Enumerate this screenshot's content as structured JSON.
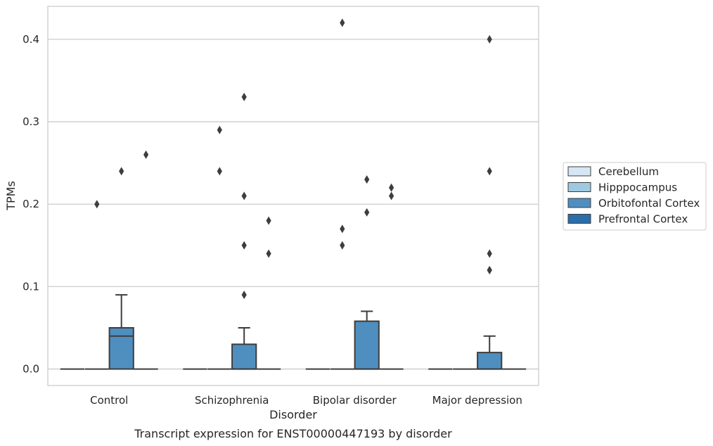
{
  "caption": "Transcript expression for ENST00000447193 by disorder",
  "chart_data": {
    "type": "box",
    "xlabel": "Disorder",
    "ylabel": "TPMs",
    "ylim": [
      -0.02,
      0.44
    ],
    "yticks": [
      "0.0",
      "0.1",
      "0.2",
      "0.3",
      "0.4"
    ],
    "ytick_values": [
      0.0,
      0.1,
      0.2,
      0.3,
      0.4
    ],
    "grid": "horizontal",
    "legend_position": "right",
    "categories": [
      "Control",
      "Schizophrenia",
      "Bipolar disorder",
      "Major depression"
    ],
    "series": [
      {
        "name": "Cerebellum",
        "color": "#d6e6f4",
        "boxes": [
          {
            "q1": 0,
            "median": 0,
            "q3": 0,
            "whisker_low": 0,
            "whisker_high": 0,
            "outliers": []
          },
          {
            "q1": 0,
            "median": 0,
            "q3": 0,
            "whisker_low": 0,
            "whisker_high": 0,
            "outliers": []
          },
          {
            "q1": 0,
            "median": 0,
            "q3": 0,
            "whisker_low": 0,
            "whisker_high": 0,
            "outliers": []
          },
          {
            "q1": 0,
            "median": 0,
            "q3": 0,
            "whisker_low": 0,
            "whisker_high": 0,
            "outliers": []
          }
        ]
      },
      {
        "name": "Hipppocampus",
        "color": "#9ecae1",
        "boxes": [
          {
            "q1": 0,
            "median": 0,
            "q3": 0,
            "whisker_low": 0,
            "whisker_high": 0,
            "outliers": [
              0.2
            ]
          },
          {
            "q1": 0,
            "median": 0,
            "q3": 0,
            "whisker_low": 0,
            "whisker_high": 0,
            "outliers": [
              0.24,
              0.29
            ]
          },
          {
            "q1": 0,
            "median": 0,
            "q3": 0,
            "whisker_low": 0,
            "whisker_high": 0,
            "outliers": [
              0.15,
              0.17,
              0.42
            ]
          },
          {
            "q1": 0,
            "median": 0,
            "q3": 0,
            "whisker_low": 0,
            "whisker_high": 0,
            "outliers": []
          }
        ]
      },
      {
        "name": "Orbitofontal Cortex",
        "color": "#4f8fc0",
        "boxes": [
          {
            "q1": 0,
            "median": 0.04,
            "q3": 0.05,
            "whisker_low": 0,
            "whisker_high": 0.09,
            "outliers": [
              0.24
            ]
          },
          {
            "q1": 0,
            "median": 0,
            "q3": 0.03,
            "whisker_low": 0,
            "whisker_high": 0.05,
            "outliers": [
              0.09,
              0.15,
              0.21,
              0.33
            ]
          },
          {
            "q1": 0,
            "median": 0,
            "q3": 0.058,
            "whisker_low": 0,
            "whisker_high": 0.07,
            "outliers": [
              0.19,
              0.23
            ]
          },
          {
            "q1": 0,
            "median": 0,
            "q3": 0.02,
            "whisker_low": 0,
            "whisker_high": 0.04,
            "outliers": [
              0.12,
              0.12,
              0.14,
              0.24,
              0.4
            ]
          }
        ]
      },
      {
        "name": "Prefrontal Cortex",
        "color": "#2b6ea9",
        "boxes": [
          {
            "q1": 0,
            "median": 0,
            "q3": 0,
            "whisker_low": 0,
            "whisker_high": 0,
            "outliers": [
              0.26
            ]
          },
          {
            "q1": 0,
            "median": 0,
            "q3": 0,
            "whisker_low": 0,
            "whisker_high": 0,
            "outliers": [
              0.14,
              0.18
            ]
          },
          {
            "q1": 0,
            "median": 0,
            "q3": 0,
            "whisker_low": 0,
            "whisker_high": 0,
            "outliers": [
              0.21,
              0.22
            ]
          },
          {
            "q1": 0,
            "median": 0,
            "q3": 0,
            "whisker_low": 0,
            "whisker_high": 0,
            "outliers": []
          }
        ]
      }
    ]
  }
}
